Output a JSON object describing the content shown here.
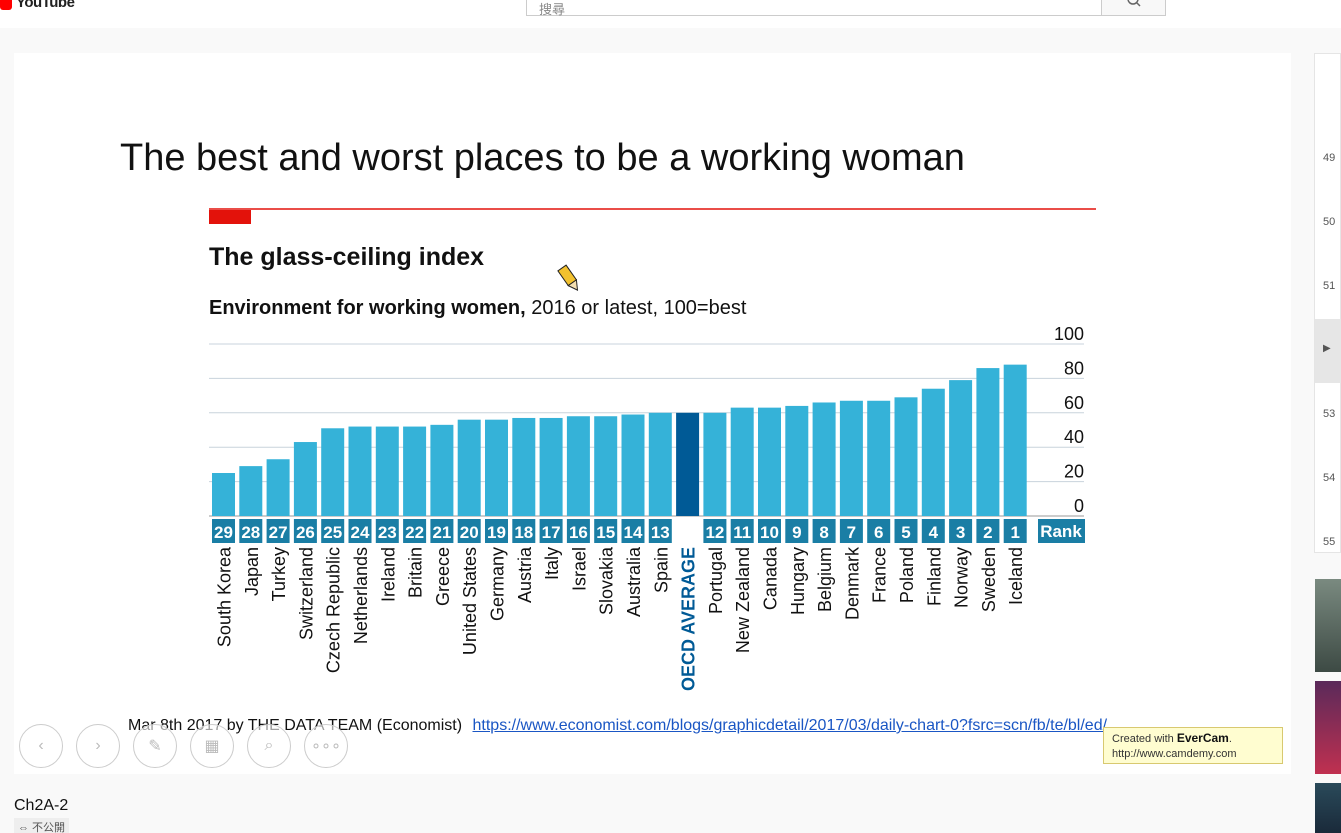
{
  "header": {
    "logo_text": "YouTube",
    "search_placeholder": "搜尋"
  },
  "slide": {
    "title": "The best and worst places to be a working woman",
    "caption_text": "Mar 8th 2017 by THE DATA TEAM (Economist)",
    "caption_link": "https://www.economist.com/blogs/graphicdetail/2017/03/daily-chart-0?fsrc=scn/fb/te/bl/ed/"
  },
  "chart_data": {
    "type": "bar",
    "title": "The glass-ceiling index",
    "subtitle_bold": "Environment for working women,",
    "subtitle_rest": " 2016 or latest, 100=best",
    "ylim": [
      0,
      100
    ],
    "yticks": [
      100,
      80,
      60,
      40,
      20,
      0
    ],
    "rank_header": "Rank",
    "categories": [
      "South Korea",
      "Japan",
      "Turkey",
      "Switzerland",
      "Czech Republic",
      "Netherlands",
      "Ireland",
      "Britain",
      "Greece",
      "United States",
      "Germany",
      "Austria",
      "Italy",
      "Israel",
      "Slovakia",
      "Australia",
      "Spain",
      "OECD AVERAGE",
      "Portugal",
      "New Zealand",
      "Canada",
      "Hungary",
      "Belgium",
      "Denmark",
      "France",
      "Poland",
      "Finland",
      "Norway",
      "Sweden",
      "Iceland"
    ],
    "ranks": [
      "29",
      "28",
      "27",
      "26",
      "25",
      "24",
      "23",
      "22",
      "21",
      "20",
      "19",
      "18",
      "17",
      "16",
      "15",
      "14",
      "13",
      "",
      "12",
      "11",
      "10",
      "9",
      "8",
      "7",
      "6",
      "5",
      "4",
      "3",
      "2",
      "1"
    ],
    "values": [
      25,
      29,
      33,
      43,
      51,
      52,
      52,
      52,
      53,
      56,
      56,
      57,
      57,
      58,
      58,
      59,
      60,
      60,
      60,
      63,
      63,
      64,
      66,
      67,
      67,
      69,
      74,
      79,
      86,
      88
    ],
    "highlight": "OECD AVERAGE",
    "colors": {
      "bar": "#35b2d8",
      "highlight": "#005a96",
      "rank_bg": "#1a7ea5",
      "accent": "#e3120b"
    }
  },
  "controls": [
    "previous-slide",
    "next-slide",
    "pen",
    "layout",
    "zoom",
    "more"
  ],
  "watermark": {
    "line1_prefix": "Created with ",
    "line1_brand": "EverCam",
    "line2": "http://www.camdemy.com"
  },
  "video": {
    "title": "Ch2A-2",
    "visibility": "⇔ 不公開"
  },
  "playlist": {
    "numbers": [
      "49",
      "50",
      "51",
      "53",
      "54",
      "55"
    ]
  }
}
